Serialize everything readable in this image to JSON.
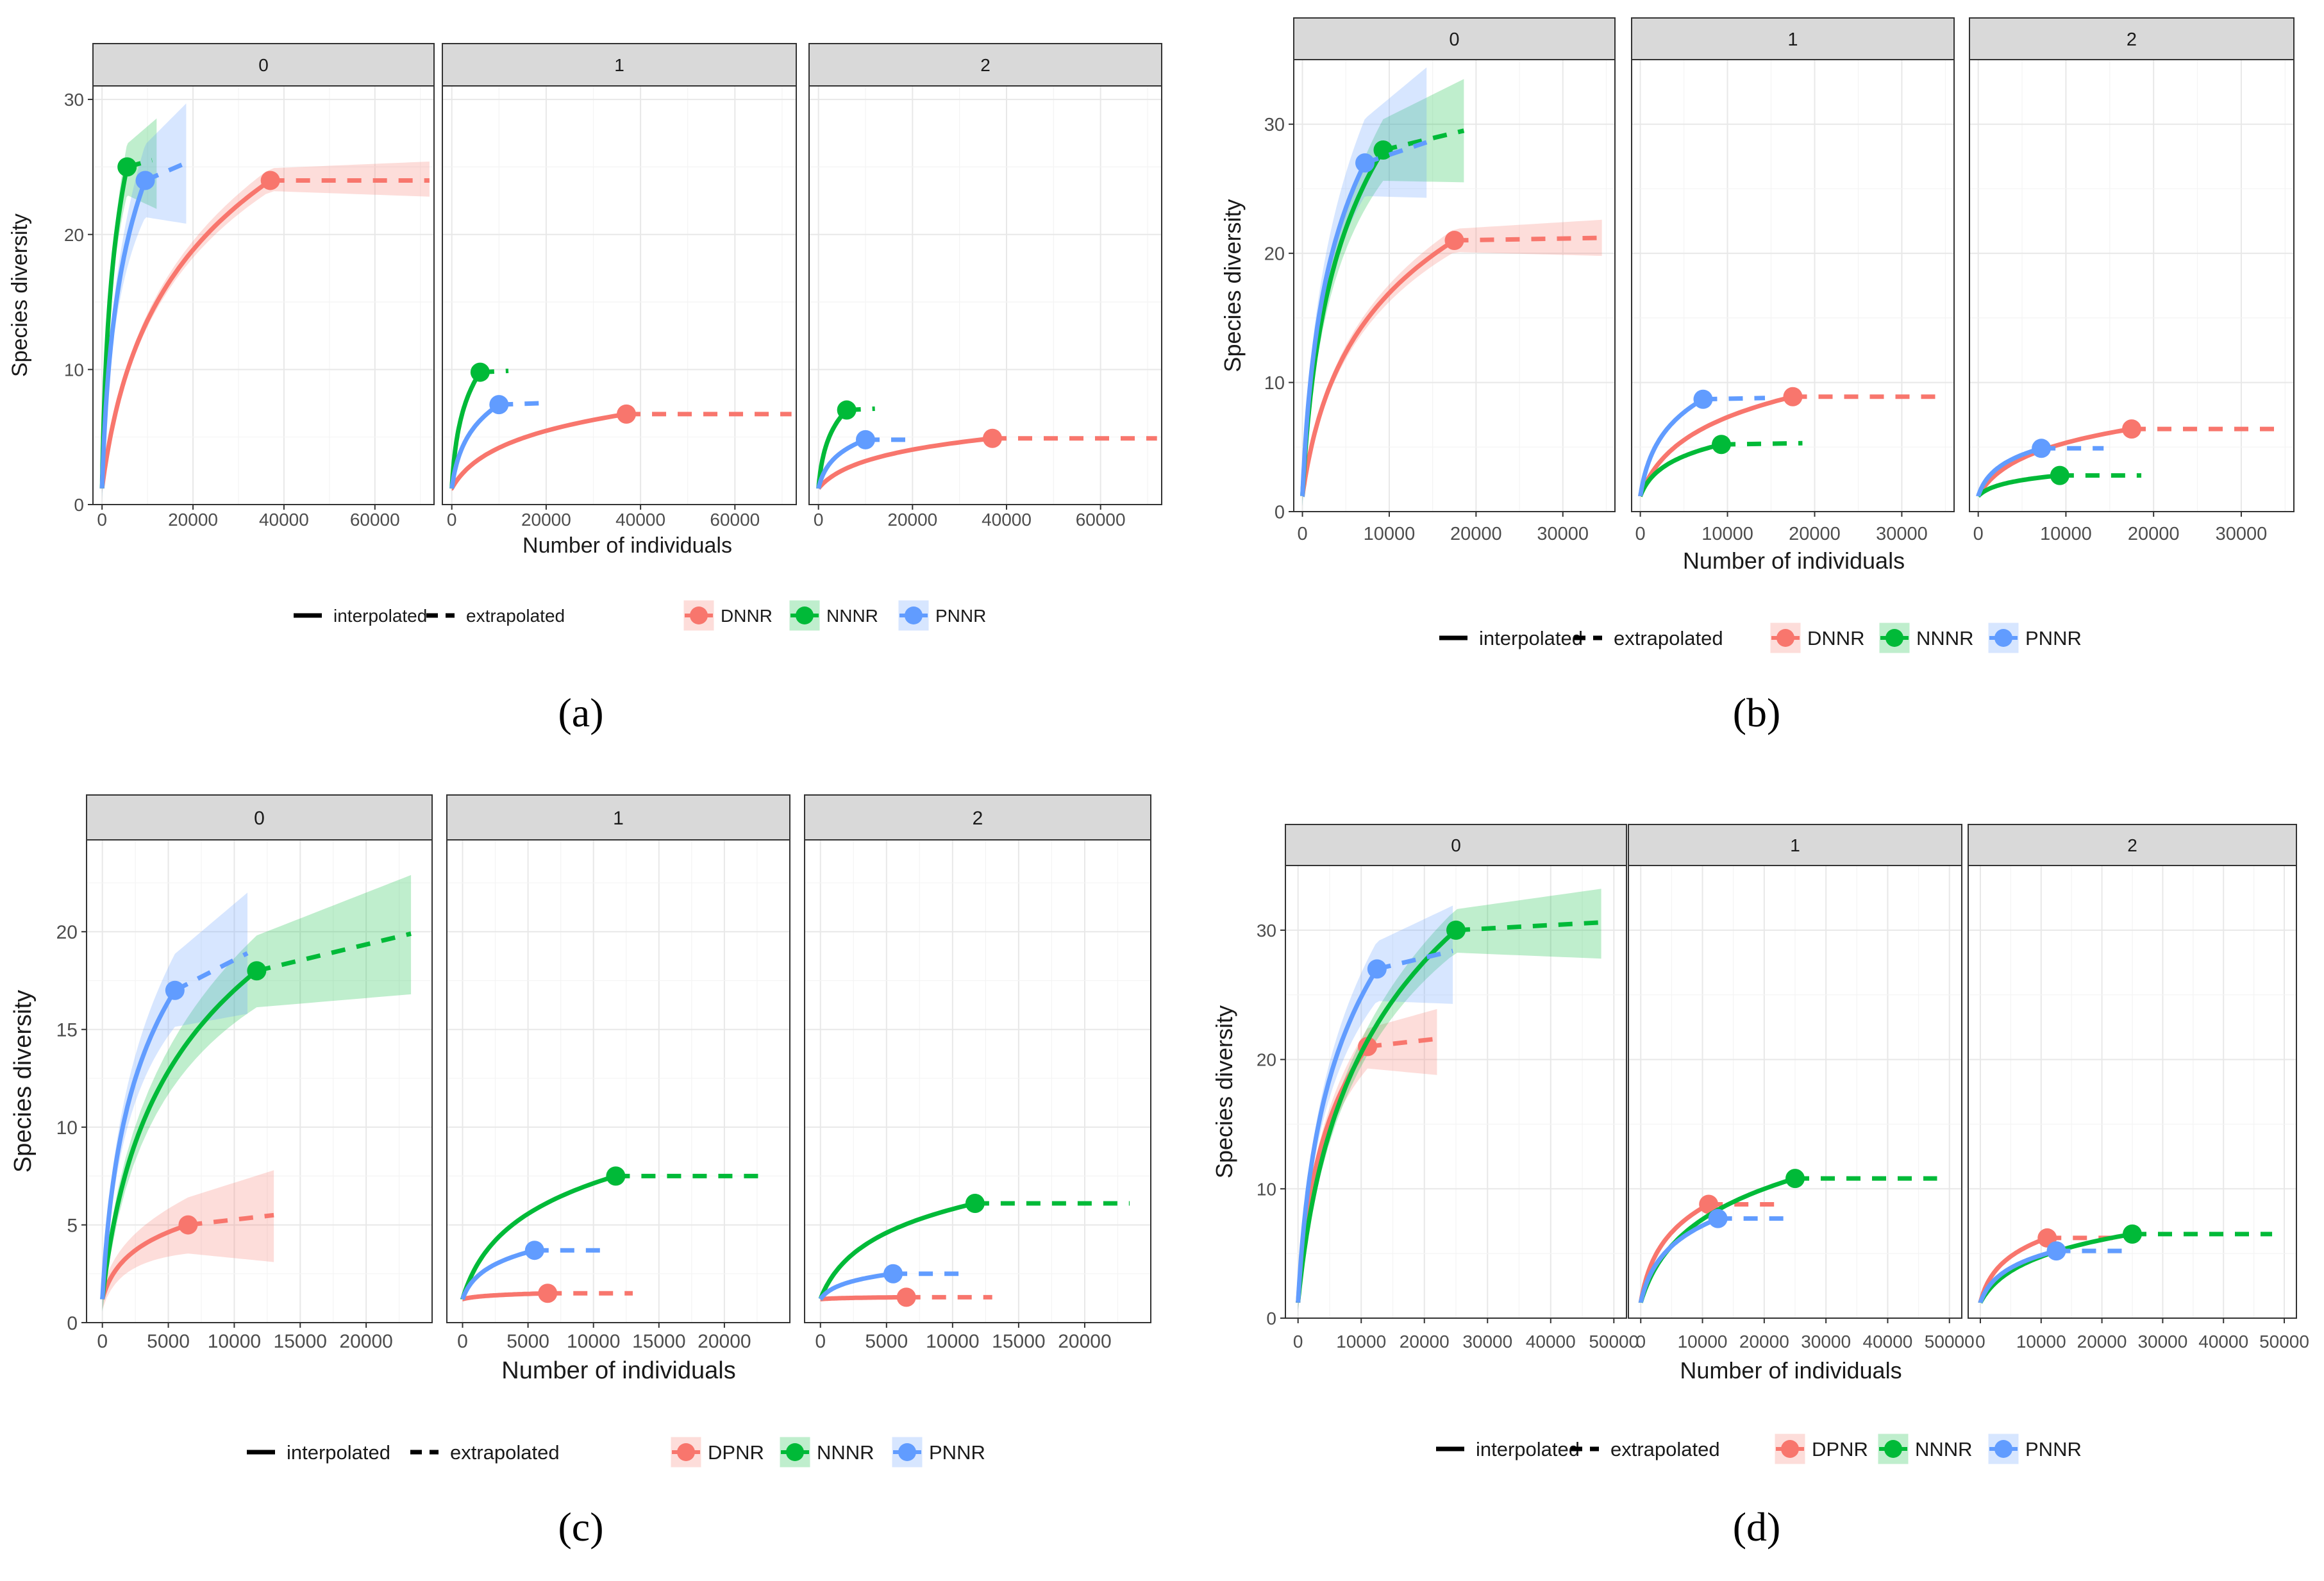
{
  "figure": {
    "strip_labels": [
      "0",
      "1",
      "2"
    ],
    "xlabel": "Number of individuals",
    "ylabel": "Species diversity",
    "legend_line_labels": [
      "interpolated",
      "extrapolated"
    ]
  },
  "chart_data": [
    {
      "type": "line",
      "caption": "(a)",
      "xlabel": "Number of individuals",
      "ylabel": "Species diversity",
      "xlim": [
        -2000,
        73000
      ],
      "ylim": [
        0,
        31
      ],
      "xticks": [
        0,
        20000,
        40000,
        60000
      ],
      "yticks": [
        0,
        10,
        20,
        30
      ],
      "legend": [
        "DNNR",
        "NNNR",
        "PNNR"
      ],
      "facets": [
        {
          "label": "0",
          "series": [
            {
              "name": "DNNR",
              "n_obs": 37000,
              "s_obs": 24,
              "n_max": 72000,
              "s_max": 24,
              "band_n": [
                0,
                72000
              ],
              "band_s": [
                23,
                25.2
              ]
            },
            {
              "name": "NNNR",
              "n_obs": 5500,
              "s_obs": 25,
              "n_max": 11000,
              "s_max": 25.5,
              "band_n": [
                0,
                12000
              ],
              "band_s": [
                22,
                28.3
              ]
            },
            {
              "name": "PNNR",
              "n_obs": 9500,
              "s_obs": 24,
              "n_max": 18500,
              "s_max": 25.3,
              "band_n": [
                0,
                18500
              ],
              "band_s": [
                21,
                29.5
              ]
            }
          ]
        },
        {
          "label": "1",
          "series": [
            {
              "name": "DNNR",
              "n_obs": 37000,
              "s_obs": 6.7,
              "n_max": 72000,
              "s_max": 6.7
            },
            {
              "name": "NNNR",
              "n_obs": 6000,
              "s_obs": 9.8,
              "n_max": 12000,
              "s_max": 9.9
            },
            {
              "name": "PNNR",
              "n_obs": 10000,
              "s_obs": 7.4,
              "n_max": 18500,
              "s_max": 7.5
            }
          ]
        },
        {
          "label": "2",
          "series": [
            {
              "name": "DNNR",
              "n_obs": 37000,
              "s_obs": 4.9,
              "n_max": 72000,
              "s_max": 4.9
            },
            {
              "name": "NNNR",
              "n_obs": 6000,
              "s_obs": 7.0,
              "n_max": 12000,
              "s_max": 7.1
            },
            {
              "name": "PNNR",
              "n_obs": 10000,
              "s_obs": 4.8,
              "n_max": 18500,
              "s_max": 4.8
            }
          ]
        }
      ]
    },
    {
      "type": "line",
      "caption": "(b)",
      "xlabel": "Number of individuals",
      "ylabel": "Species diversity",
      "xlim": [
        -1000,
        36000
      ],
      "ylim": [
        0,
        35
      ],
      "xticks": [
        0,
        10000,
        20000,
        30000
      ],
      "yticks": [
        0,
        10,
        20,
        30
      ],
      "legend": [
        "DNNR",
        "NNNR",
        "PNNR"
      ],
      "facets": [
        {
          "label": "0",
          "series": [
            {
              "name": "DNNR",
              "n_obs": 17500,
              "s_obs": 21,
              "n_max": 34500,
              "s_max": 21.2,
              "band_n": [
                0,
                34500
              ],
              "band_s": [
                20,
                22.4
              ]
            },
            {
              "name": "NNNR",
              "n_obs": 9300,
              "s_obs": 28,
              "n_max": 18600,
              "s_max": 29.5,
              "band_n": [
                0,
                18600
              ],
              "band_s": [
                25.7,
                33.3
              ]
            },
            {
              "name": "PNNR",
              "n_obs": 7200,
              "s_obs": 27,
              "n_max": 14300,
              "s_max": 28.6,
              "band_n": [
                0,
                14300
              ],
              "band_s": [
                24.5,
                34.2
              ]
            }
          ]
        },
        {
          "label": "1",
          "series": [
            {
              "name": "DNNR",
              "n_obs": 17500,
              "s_obs": 8.9,
              "n_max": 34500,
              "s_max": 8.9
            },
            {
              "name": "NNNR",
              "n_obs": 9300,
              "s_obs": 5.2,
              "n_max": 18600,
              "s_max": 5.3
            },
            {
              "name": "PNNR",
              "n_obs": 7200,
              "s_obs": 8.7,
              "n_max": 14300,
              "s_max": 8.8
            }
          ]
        },
        {
          "label": "2",
          "series": [
            {
              "name": "DNNR",
              "n_obs": 17500,
              "s_obs": 6.4,
              "n_max": 34500,
              "s_max": 6.4
            },
            {
              "name": "NNNR",
              "n_obs": 9300,
              "s_obs": 2.8,
              "n_max": 18600,
              "s_max": 2.8
            },
            {
              "name": "PNNR",
              "n_obs": 7200,
              "s_obs": 4.9,
              "n_max": 14300,
              "s_max": 4.9
            }
          ]
        }
      ]
    },
    {
      "type": "line",
      "caption": "(c)",
      "xlabel": "Number of individuals",
      "ylabel": "Species diversity",
      "xlim": [
        -1200,
        25000
      ],
      "ylim": [
        0,
        24.7
      ],
      "xticks": [
        0,
        5000,
        10000,
        15000,
        20000
      ],
      "yticks": [
        0,
        5,
        10,
        15,
        20
      ],
      "legend": [
        "DPNR",
        "NNNR",
        "PNNR"
      ],
      "facets": [
        {
          "label": "0",
          "series": [
            {
              "name": "DPNR",
              "n_obs": 6500,
              "s_obs": 5,
              "n_max": 13000,
              "s_max": 5.5,
              "band_n": [
                0,
                13000
              ],
              "band_s": [
                3.3,
                7.6
              ]
            },
            {
              "name": "NNNR",
              "n_obs": 11700,
              "s_obs": 18,
              "n_max": 23400,
              "s_max": 19.9,
              "band_n": [
                0,
                23400
              ],
              "band_s": [
                17,
                22.7
              ]
            },
            {
              "name": "PNNR",
              "n_obs": 5500,
              "s_obs": 17,
              "n_max": 11000,
              "s_max": 18.9,
              "band_n": [
                0,
                11000
              ],
              "band_s": [
                16,
                21.8
              ]
            }
          ]
        },
        {
          "label": "1",
          "series": [
            {
              "name": "DPNR",
              "n_obs": 6500,
              "s_obs": 1.5,
              "n_max": 13000,
              "s_max": 1.5
            },
            {
              "name": "NNNR",
              "n_obs": 11700,
              "s_obs": 7.5,
              "n_max": 23400,
              "s_max": 7.5
            },
            {
              "name": "PNNR",
              "n_obs": 5500,
              "s_obs": 3.7,
              "n_max": 11000,
              "s_max": 3.7
            }
          ]
        },
        {
          "label": "2",
          "series": [
            {
              "name": "DPNR",
              "n_obs": 6500,
              "s_obs": 1.3,
              "n_max": 13000,
              "s_max": 1.3
            },
            {
              "name": "NNNR",
              "n_obs": 11700,
              "s_obs": 6.1,
              "n_max": 23400,
              "s_max": 6.1
            },
            {
              "name": "PNNR",
              "n_obs": 5500,
              "s_obs": 2.5,
              "n_max": 11000,
              "s_max": 2.5
            }
          ]
        }
      ]
    },
    {
      "type": "line",
      "caption": "(d)",
      "xlabel": "Number of individuals",
      "ylabel": "Species diversity",
      "xlim": [
        -2000,
        52000
      ],
      "ylim": [
        0,
        35
      ],
      "xticks": [
        0,
        10000,
        20000,
        30000,
        40000,
        50000
      ],
      "yticks": [
        0,
        10,
        20,
        30
      ],
      "legend": [
        "DPNR",
        "NNNR",
        "PNNR"
      ],
      "facets": [
        {
          "label": "0",
          "series": [
            {
              "name": "DPNR",
              "n_obs": 11000,
              "s_obs": 21,
              "n_max": 22000,
              "s_max": 21.6,
              "band_n": [
                0,
                22000
              ],
              "band_s": [
                19,
                23.7
              ]
            },
            {
              "name": "NNNR",
              "n_obs": 25000,
              "s_obs": 30,
              "n_max": 48000,
              "s_max": 30.6,
              "band_n": [
                0,
                48000
              ],
              "band_s": [
                28,
                33
              ]
            },
            {
              "name": "PNNR",
              "n_obs": 12500,
              "s_obs": 27,
              "n_max": 24500,
              "s_max": 28.4,
              "band_n": [
                0,
                24500
              ],
              "band_s": [
                24.5,
                31.7
              ]
            }
          ]
        },
        {
          "label": "1",
          "series": [
            {
              "name": "DPNR",
              "n_obs": 11000,
              "s_obs": 8.8,
              "n_max": 22000,
              "s_max": 8.8
            },
            {
              "name": "NNNR",
              "n_obs": 25000,
              "s_obs": 10.8,
              "n_max": 48000,
              "s_max": 10.8
            },
            {
              "name": "PNNR",
              "n_obs": 12500,
              "s_obs": 7.7,
              "n_max": 24500,
              "s_max": 7.7
            }
          ]
        },
        {
          "label": "2",
          "series": [
            {
              "name": "DPNR",
              "n_obs": 11000,
              "s_obs": 6.2,
              "n_max": 22000,
              "s_max": 6.2
            },
            {
              "name": "NNNR",
              "n_obs": 25000,
              "s_obs": 6.5,
              "n_max": 48000,
              "s_max": 6.5
            },
            {
              "name": "PNNR",
              "n_obs": 12500,
              "s_obs": 5.2,
              "n_max": 24500,
              "s_max": 5.2
            }
          ]
        }
      ]
    }
  ],
  "colors": {
    "red": "#f8766d",
    "green": "#00ba38",
    "blue": "#619cff",
    "strip_fill": "#d9d9d9",
    "strip_border": "#333333",
    "grid_major": "#e8e8e8",
    "grid_minor": "#f4f4f4",
    "axis_text": "#4d4d4d"
  }
}
